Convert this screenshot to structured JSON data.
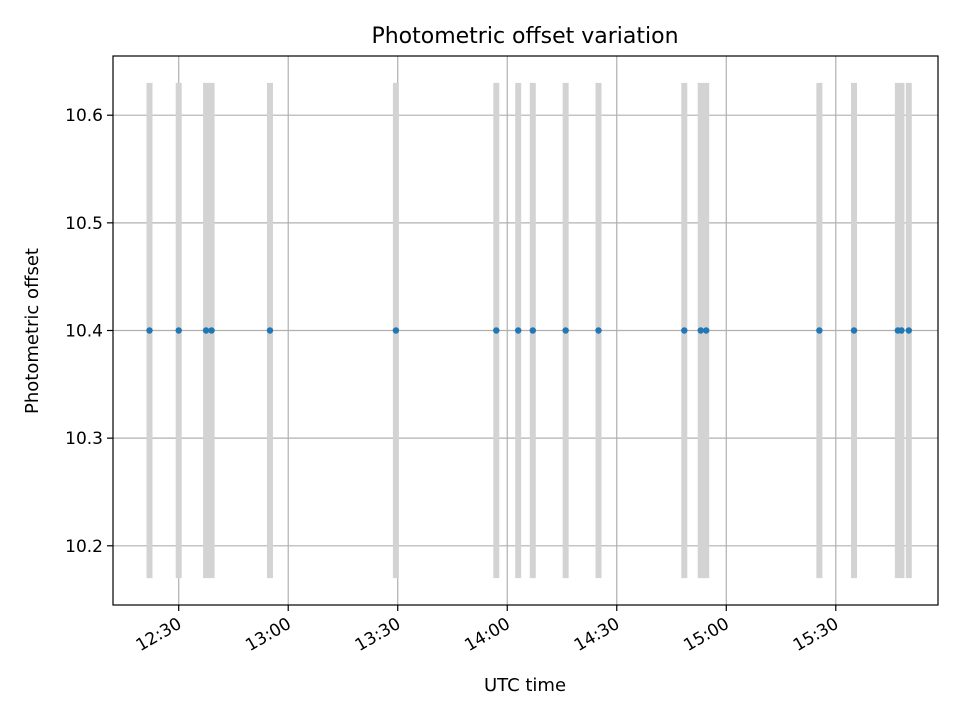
{
  "chart_data": {
    "type": "scatter",
    "title": "Photometric offset variation",
    "xlabel": "UTC time",
    "ylabel": "Photometric offset",
    "x_ticks": [
      "12:30",
      "13:00",
      "13:30",
      "14:00",
      "14:30",
      "15:00",
      "15:30"
    ],
    "y_ticks": [
      "10.2",
      "10.3",
      "10.4",
      "10.5",
      "10.6"
    ],
    "xlim": [
      "12:12",
      "15:58"
    ],
    "ylim": [
      10.145,
      10.655
    ],
    "grid": true,
    "colors": {
      "points": "#1f77b4",
      "error_bars": "#d3d3d3",
      "grid": "#b0b0b0"
    },
    "points": [
      {
        "x": "12:22:00",
        "y": 10.4,
        "y_low": 10.17,
        "y_high": 10.63
      },
      {
        "x": "12:30:00",
        "y": 10.4,
        "y_low": 10.17,
        "y_high": 10.63
      },
      {
        "x": "12:37:30",
        "y": 10.4,
        "y_low": 10.17,
        "y_high": 10.63
      },
      {
        "x": "12:39:00",
        "y": 10.4,
        "y_low": 10.17,
        "y_high": 10.63
      },
      {
        "x": "12:55:00",
        "y": 10.4,
        "y_low": 10.17,
        "y_high": 10.63
      },
      {
        "x": "13:29:30",
        "y": 10.4,
        "y_low": 10.17,
        "y_high": 10.63
      },
      {
        "x": "13:57:00",
        "y": 10.4,
        "y_low": 10.17,
        "y_high": 10.63
      },
      {
        "x": "14:03:00",
        "y": 10.4,
        "y_low": 10.17,
        "y_high": 10.63
      },
      {
        "x": "14:07:00",
        "y": 10.4,
        "y_low": 10.17,
        "y_high": 10.63
      },
      {
        "x": "14:16:00",
        "y": 10.4,
        "y_low": 10.17,
        "y_high": 10.63
      },
      {
        "x": "14:25:00",
        "y": 10.4,
        "y_low": 10.17,
        "y_high": 10.63
      },
      {
        "x": "14:48:30",
        "y": 10.4,
        "y_low": 10.17,
        "y_high": 10.63
      },
      {
        "x": "14:53:00",
        "y": 10.4,
        "y_low": 10.17,
        "y_high": 10.63
      },
      {
        "x": "14:54:30",
        "y": 10.4,
        "y_low": 10.17,
        "y_high": 10.63
      },
      {
        "x": "15:25:30",
        "y": 10.4,
        "y_low": 10.17,
        "y_high": 10.63
      },
      {
        "x": "15:35:00",
        "y": 10.4,
        "y_low": 10.17,
        "y_high": 10.63
      },
      {
        "x": "15:47:00",
        "y": 10.4,
        "y_low": 10.17,
        "y_high": 10.63
      },
      {
        "x": "15:48:00",
        "y": 10.4,
        "y_low": 10.17,
        "y_high": 10.63
      },
      {
        "x": "15:50:00",
        "y": 10.4,
        "y_low": 10.17,
        "y_high": 10.63
      }
    ]
  }
}
